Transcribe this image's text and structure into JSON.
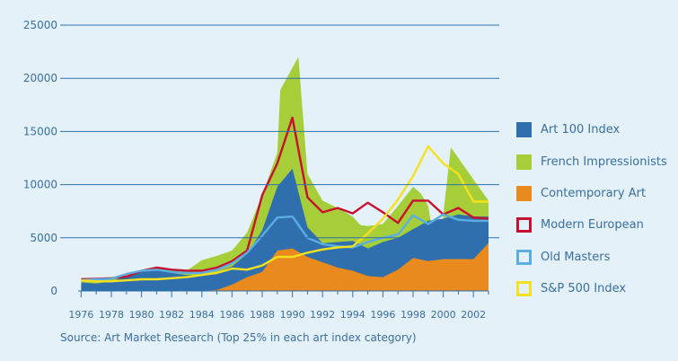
{
  "chart_data": {
    "type": "area",
    "title": "",
    "xlabel": "",
    "ylabel": "",
    "x": [
      1976,
      1977,
      1978,
      1979,
      1980,
      1981,
      1982,
      1983,
      1984,
      1985,
      1986,
      1987,
      1988,
      1989,
      1990,
      1991,
      1992,
      1993,
      1994,
      1995,
      1996,
      1997,
      1998,
      1999,
      2000,
      2001,
      2002,
      2003
    ],
    "xlim": [
      1975.8,
      2003
    ],
    "ylim": [
      0,
      25000
    ],
    "xticks": [
      "1976",
      "1978",
      "1980",
      "1982",
      "1984",
      "1986",
      "1988",
      "1990",
      "1992",
      "1994",
      "1996",
      "1998",
      "2000",
      "2002"
    ],
    "yticks": [
      "0",
      "5000",
      "10000",
      "15000",
      "20000",
      "25000"
    ],
    "grid": "horizontal",
    "legend_position": "right",
    "series": [
      {
        "name": "French Impressionists",
        "kind": "area",
        "color": "#a6ce39",
        "x": [
          1976,
          1977,
          1978,
          1979,
          1980,
          1981,
          1982,
          1983,
          1984,
          1985,
          1986,
          1987,
          1988,
          1989,
          1989.2,
          1990,
          1990.4,
          1991,
          1992,
          1993,
          1994,
          1994.5,
          1995,
          1996,
          1997,
          1998,
          1998.5,
          1999,
          1999.8,
          2000,
          2000.5,
          2001,
          2002,
          2003
        ],
        "values": [
          1100,
          1100,
          1150,
          1400,
          1900,
          2200,
          2100,
          1900,
          2900,
          3300,
          3800,
          5500,
          9000,
          13000,
          18900,
          21000,
          22000,
          11000,
          8500,
          7800,
          7000,
          6200,
          6100,
          6300,
          8000,
          9800,
          9200,
          8000,
          1200,
          7200,
          13500,
          12500,
          10500,
          8500
        ]
      },
      {
        "name": "Art 100 Index",
        "kind": "area",
        "color": "#2f6fae",
        "values": [
          800,
          700,
          900,
          1400,
          2000,
          2000,
          1700,
          1500,
          1500,
          1800,
          2300,
          3500,
          5700,
          9800,
          11500,
          6000,
          4500,
          4600,
          4700,
          4000,
          4600,
          5000,
          5800,
          6600,
          6800,
          7200,
          7000,
          7000
        ]
      },
      {
        "name": "Contemporary Art",
        "kind": "area",
        "color": "#e88a1e",
        "values": [
          0,
          0,
          0,
          0,
          0,
          0,
          0,
          0,
          0,
          100,
          600,
          1300,
          1800,
          3800,
          4000,
          3200,
          2700,
          2200,
          1900,
          1400,
          1300,
          2000,
          3100,
          2800,
          3000,
          3000,
          3000,
          4500
        ]
      },
      {
        "name": "Modern European",
        "kind": "line",
        "color": "#c8102e",
        "values": [
          1100,
          1150,
          1200,
          1350,
          1900,
          2200,
          2000,
          1900,
          1900,
          2200,
          2800,
          3800,
          9000,
          12000,
          16300,
          8800,
          7400,
          7800,
          7300,
          8300,
          7400,
          6400,
          8500,
          8500,
          7200,
          7800,
          6900,
          6800
        ]
      },
      {
        "name": "Old Masters",
        "kind": "line",
        "color": "#5aaee0",
        "values": [
          1000,
          1100,
          1150,
          1600,
          1900,
          2000,
          1800,
          1700,
          1700,
          2000,
          2600,
          3600,
          5200,
          6900,
          7000,
          5000,
          4400,
          4200,
          4100,
          4600,
          5000,
          5300,
          7100,
          6300,
          7200,
          6700,
          6600,
          6600
        ]
      },
      {
        "name": "S&P 500 Index",
        "kind": "line",
        "color": "#f5e11e",
        "values": [
          1000,
          900,
          900,
          1000,
          1100,
          1100,
          1200,
          1300,
          1500,
          1700,
          2100,
          2000,
          2400,
          3200,
          3200,
          3600,
          3900,
          4100,
          4200,
          5400,
          6800,
          8600,
          10800,
          13600,
          12000,
          11000,
          8400,
          8400
        ]
      }
    ],
    "legend_order": [
      "Art 100 Index",
      "French Impressionists",
      "Contemporary Art",
      "Modern European",
      "Old Masters",
      "S&P 500 Index"
    ]
  },
  "source_note": "Source: Art Market Research (Top 25% in each art index category)"
}
